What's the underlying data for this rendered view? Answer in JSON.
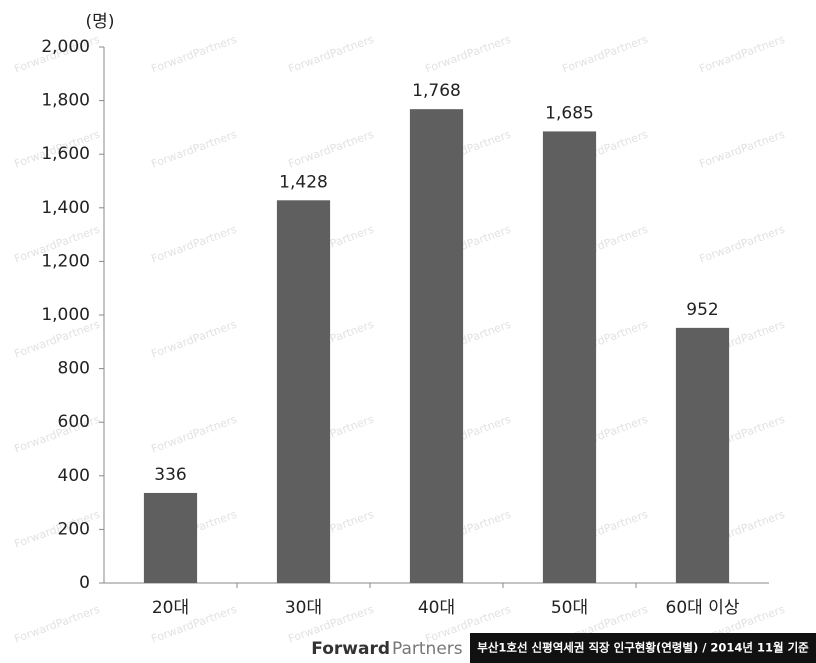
{
  "chart_data": {
    "type": "bar",
    "y_unit": "(명)",
    "categories": [
      "20대",
      "30대",
      "40대",
      "50대",
      "60대 이상"
    ],
    "values": [
      336,
      1428,
      1768,
      1685,
      952
    ],
    "value_labels": [
      "336",
      "1,428",
      "1,768",
      "1,685",
      "952"
    ],
    "color": "#5f5f5f",
    "ylim": [
      0,
      2000
    ],
    "yticks": [
      0,
      200,
      400,
      600,
      800,
      {
        "value": 1000,
        "label": "1,000"
      },
      {
        "value": 1200,
        "label": "1,200"
      },
      {
        "value": 1400,
        "label": "1,400"
      },
      {
        "value": 1600,
        "label": "1,600"
      },
      {
        "value": 1800,
        "label": "1,800"
      },
      {
        "value": 2000,
        "label": "2,000"
      }
    ],
    "grid": false
  },
  "watermark": "ForwardPartners",
  "footer": {
    "logo_bold": "Forward",
    "logo_light": "Partners",
    "caption": "부산1호선 신평역세권 직장 인구현황(연령별) / 2014년 11월 기준"
  }
}
